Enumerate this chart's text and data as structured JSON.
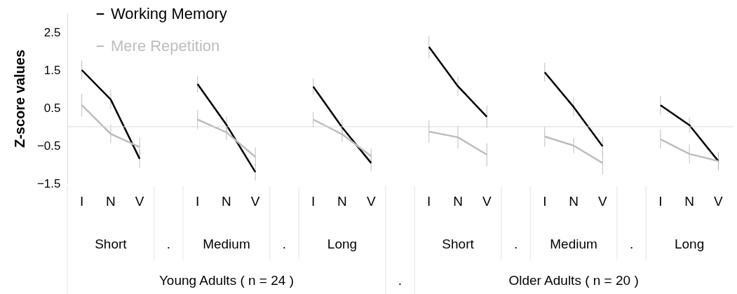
{
  "chart_data": {
    "type": "line",
    "ylabel": "Z-score values",
    "categories": [
      "I",
      "N",
      "V",
      null,
      "I",
      "N",
      "V",
      null,
      "I",
      "N",
      "V",
      null,
      "I",
      "N",
      "V",
      null,
      "I",
      "N",
      "V",
      null,
      "I",
      "N",
      "V"
    ],
    "series": [
      {
        "name": "Working Memory",
        "color": "#000000",
        "values": [
          1.5,
          0.72,
          -0.85,
          null,
          1.13,
          0.05,
          -1.2,
          null,
          1.06,
          -0.02,
          -0.96,
          null,
          2.11,
          1.07,
          0.26,
          null,
          1.44,
          0.52,
          -0.52,
          null,
          0.57,
          0.04,
          -0.91
        ],
        "errors": [
          0.25,
          0.25,
          0.25,
          null,
          0.22,
          0.22,
          0.22,
          null,
          0.22,
          0.22,
          0.22,
          null,
          0.3,
          0.25,
          0.3,
          null,
          0.25,
          0.25,
          0.25,
          null,
          0.25,
          0.2,
          0.2
        ]
      },
      {
        "name": "Mere Repetition",
        "color": "#bdbdbd",
        "values": [
          0.57,
          -0.19,
          -0.54,
          null,
          0.19,
          -0.15,
          -0.8,
          null,
          0.19,
          -0.2,
          -0.78,
          null,
          -0.13,
          -0.28,
          -0.74,
          null,
          -0.26,
          -0.5,
          -0.96,
          null,
          -0.33,
          -0.72,
          -0.91
        ],
        "errors": [
          0.3,
          0.25,
          0.25,
          null,
          0.25,
          0.2,
          0.25,
          null,
          0.2,
          0.2,
          0.2,
          null,
          0.3,
          0.3,
          0.3,
          null,
          0.27,
          0.2,
          0.3,
          null,
          0.25,
          0.25,
          0.25
        ]
      }
    ],
    "ylim": [
      -1.5,
      3
    ],
    "yticks": [
      -1.5,
      -0.5,
      0.5,
      1.5,
      2.5
    ],
    "ref_lines": [
      {
        "axis": "y",
        "value": 0,
        "color": "#d9d9d9"
      }
    ],
    "annotations": [
      "Short",
      ".",
      "Medium",
      ".",
      "Long",
      "Short",
      ".",
      "Medium",
      ".",
      "Long",
      "Young Adults ( n = 24 )",
      ".",
      "Older Adults ( n = 20 )"
    ],
    "legend": "top left",
    "grid": false,
    "marker": "none",
    "line_style": "solid"
  }
}
